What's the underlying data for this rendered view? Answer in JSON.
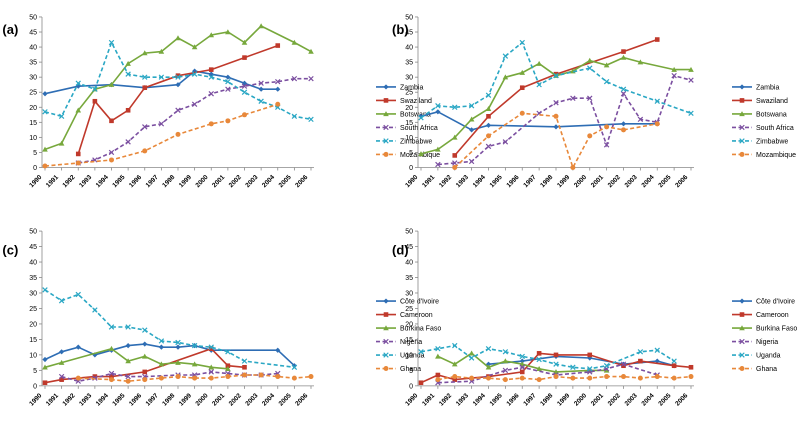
{
  "chart_data": [
    {
      "panel_label": "(a)",
      "type": "line",
      "x": [
        "1990",
        "1991",
        "1992",
        "1993",
        "1994",
        "1995",
        "1996",
        "1997",
        "1998",
        "1999",
        "2000",
        "2001",
        "2002",
        "2003",
        "2004",
        "2005",
        "2006"
      ],
      "ylim": [
        0,
        50
      ],
      "yticks": [
        0,
        5,
        10,
        15,
        20,
        25,
        30,
        35,
        40,
        45,
        50
      ],
      "grid": false,
      "legend": "right",
      "series": [
        {
          "name": "Zambia",
          "color": "#2e6db4",
          "marker": "diamond",
          "dash": "solid",
          "values": [
            24.5,
            null,
            27,
            null,
            27.5,
            null,
            26.5,
            null,
            27.5,
            32,
            31,
            30,
            28,
            26,
            26,
            null,
            null
          ]
        },
        {
          "name": "Swaziland",
          "color": "#c0392b",
          "marker": "square",
          "dash": "solid",
          "values": [
            null,
            null,
            4.5,
            22,
            15.5,
            19,
            26.5,
            null,
            30.5,
            null,
            32.5,
            null,
            36.5,
            null,
            40.5,
            null,
            null
          ]
        },
        {
          "name": "Botswana",
          "color": "#77a83c",
          "marker": "triangle",
          "dash": "solid",
          "values": [
            6,
            8,
            19,
            26,
            27.5,
            34.5,
            38,
            38.5,
            43,
            40,
            44,
            45,
            41.5,
            47,
            null,
            41.5,
            38.5
          ]
        },
        {
          "name": "South Africa",
          "color": "#7b4fa0",
          "marker": "x",
          "dash": "dash",
          "values": [
            null,
            null,
            1.5,
            2.5,
            5,
            8.5,
            13.5,
            14.5,
            19,
            21,
            24.5,
            26,
            27,
            28,
            28.5,
            29.5,
            29.5
          ]
        },
        {
          "name": "Zimbabwe",
          "color": "#2aa7c4",
          "marker": "x",
          "dash": "dash",
          "values": [
            18.5,
            17,
            28,
            26,
            41.5,
            31,
            30,
            30,
            30,
            31,
            30,
            28.5,
            25,
            22,
            20,
            17,
            16
          ]
        },
        {
          "name": "Mozambique",
          "color": "#e8883a",
          "marker": "circle",
          "dash": "dash",
          "values": [
            0.5,
            null,
            1.5,
            null,
            2.5,
            null,
            5.5,
            null,
            11,
            null,
            14.5,
            15.5,
            17.5,
            null,
            21,
            null,
            null
          ]
        }
      ]
    },
    {
      "panel_label": "(b)",
      "type": "line",
      "x": [
        "1990",
        "1991",
        "1992",
        "1993",
        "1994",
        "1995",
        "1996",
        "1997",
        "1998",
        "1999",
        "2000",
        "2001",
        "2002",
        "2003",
        "2004",
        "2005",
        "2006"
      ],
      "ylim": [
        0,
        50
      ],
      "yticks": [
        0,
        5,
        10,
        15,
        20,
        25,
        30,
        35,
        40,
        45,
        50
      ],
      "grid": false,
      "legend": "right",
      "series": [
        {
          "name": "Zambia",
          "color": "#2e6db4",
          "marker": "diamond",
          "dash": "solid",
          "values": [
            17,
            18.5,
            null,
            12.5,
            14,
            null,
            null,
            null,
            13.5,
            null,
            null,
            null,
            14.5,
            null,
            14.5,
            null,
            null
          ]
        },
        {
          "name": "Swaziland",
          "color": "#c0392b",
          "marker": "square",
          "dash": "solid",
          "values": [
            null,
            null,
            4,
            null,
            17,
            null,
            26.5,
            null,
            31,
            null,
            null,
            null,
            38.5,
            null,
            42.5,
            null,
            null
          ]
        },
        {
          "name": "Botswana",
          "color": "#77a83c",
          "marker": "triangle",
          "dash": "solid",
          "values": [
            4.5,
            6,
            10,
            16,
            19.5,
            30,
            31.5,
            34.5,
            30.5,
            32,
            35.5,
            34,
            36.5,
            35,
            null,
            32.5,
            32.5
          ]
        },
        {
          "name": "South Africa",
          "color": "#7b4fa0",
          "marker": "x",
          "dash": "dash",
          "values": [
            null,
            1,
            1.5,
            2,
            7,
            8.5,
            null,
            18,
            21.5,
            23,
            23,
            7.5,
            24.5,
            16,
            15,
            30.5,
            29
          ]
        },
        {
          "name": "Zimbabwe",
          "color": "#2aa7c4",
          "marker": "x",
          "dash": "dash",
          "values": [
            16.5,
            20.5,
            20,
            20.5,
            24,
            37,
            41.5,
            27.5,
            30.5,
            null,
            33,
            28.5,
            26,
            null,
            22,
            null,
            18
          ]
        },
        {
          "name": "Mozambique",
          "color": "#e8883a",
          "marker": "circle",
          "dash": "dash",
          "values": [
            null,
            null,
            0,
            null,
            10.5,
            null,
            18,
            null,
            17,
            0,
            10.5,
            13.5,
            12.5,
            null,
            14.5,
            null,
            null
          ]
        }
      ]
    },
    {
      "panel_label": "(c)",
      "type": "line",
      "x": [
        "1990",
        "1991",
        "1992",
        "1993",
        "1994",
        "1995",
        "1996",
        "1997",
        "1998",
        "1999",
        "2000",
        "2001",
        "2002",
        "2003",
        "2004",
        "2005",
        "2006"
      ],
      "ylim": [
        0,
        50
      ],
      "yticks": [
        0,
        5,
        10,
        15,
        20,
        25,
        30,
        35,
        40,
        45,
        50
      ],
      "grid": false,
      "legend": "right",
      "series": [
        {
          "name": "Côte d'Ivoire",
          "color": "#2e6db4",
          "marker": "diamond",
          "dash": "solid",
          "values": [
            8.5,
            11,
            12.5,
            10,
            11.5,
            13,
            13.5,
            12.5,
            12.5,
            13,
            11.5,
            null,
            null,
            null,
            11.5,
            6.5,
            null
          ]
        },
        {
          "name": "Cameroon",
          "color": "#c0392b",
          "marker": "square",
          "dash": "solid",
          "values": [
            1,
            2,
            null,
            3,
            3,
            null,
            4.5,
            null,
            null,
            null,
            12,
            6.5,
            6,
            null,
            null,
            null,
            null
          ]
        },
        {
          "name": "Burkina Faso",
          "color": "#77a83c",
          "marker": "triangle",
          "dash": "solid",
          "values": [
            6,
            7.5,
            null,
            null,
            12,
            8,
            9.5,
            7,
            7.5,
            7,
            6,
            5.5,
            null,
            null,
            null,
            null,
            null
          ]
        },
        {
          "name": "Nigeria",
          "color": "#7b4fa0",
          "marker": "x",
          "dash": "dash",
          "values": [
            null,
            3,
            1.5,
            2.5,
            4,
            3,
            3,
            null,
            3.5,
            3.5,
            4.5,
            4,
            3.5,
            3.5,
            4,
            null,
            null
          ]
        },
        {
          "name": "Uganda",
          "color": "#2aa7c4",
          "marker": "x",
          "dash": "dash",
          "values": [
            31,
            27.5,
            29.5,
            24.5,
            19,
            19,
            18,
            14.5,
            14,
            13,
            12.5,
            11,
            8,
            null,
            null,
            6,
            null
          ]
        },
        {
          "name": "Ghana",
          "color": "#e8883a",
          "marker": "circle",
          "dash": "dash",
          "values": [
            null,
            null,
            2.5,
            null,
            2,
            1.5,
            2,
            2.5,
            3,
            2.5,
            2.5,
            3,
            3.5,
            3.5,
            3,
            2.5,
            3
          ]
        }
      ]
    },
    {
      "panel_label": "(d)",
      "type": "line",
      "x": [
        "1990",
        "1991",
        "1992",
        "1993",
        "1994",
        "1995",
        "1996",
        "1997",
        "1998",
        "1999",
        "2000",
        "2001",
        "2002",
        "2003",
        "2004",
        "2005",
        "2006"
      ],
      "ylim": [
        0,
        50
      ],
      "yticks": [
        0,
        5,
        10,
        15,
        20,
        25,
        30,
        35,
        40,
        45,
        50
      ],
      "grid": false,
      "legend": "right",
      "series": [
        {
          "name": "Côte d'Ivoire",
          "color": "#2e6db4",
          "marker": "diamond",
          "dash": "solid",
          "values": [
            null,
            null,
            null,
            null,
            7,
            null,
            8,
            null,
            9.5,
            null,
            9,
            null,
            7,
            null,
            8,
            6.5,
            null
          ]
        },
        {
          "name": "Cameroon",
          "color": "#c0392b",
          "marker": "square",
          "dash": "solid",
          "values": [
            1,
            3.5,
            2,
            null,
            3,
            null,
            4.5,
            10.5,
            10,
            null,
            10,
            null,
            6.5,
            8,
            null,
            6.5,
            6
          ]
        },
        {
          "name": "Burkina Faso",
          "color": "#77a83c",
          "marker": "triangle",
          "dash": "solid",
          "values": [
            null,
            9.5,
            7,
            10.5,
            6,
            8,
            7,
            5.5,
            4.5,
            null,
            5,
            5,
            null,
            null,
            null,
            null,
            null
          ]
        },
        {
          "name": "Nigeria",
          "color": "#7b4fa0",
          "marker": "x",
          "dash": "dash",
          "values": [
            null,
            1,
            null,
            1.5,
            null,
            5,
            6,
            null,
            3.5,
            null,
            4.5,
            5.5,
            7,
            null,
            3.5,
            null,
            null
          ]
        },
        {
          "name": "Uganda",
          "color": "#2aa7c4",
          "marker": "x",
          "dash": "dash",
          "values": [
            11,
            12,
            13,
            9,
            12,
            11,
            9.5,
            8.5,
            7,
            6,
            5.5,
            6.5,
            null,
            11,
            11.5,
            8,
            null
          ]
        },
        {
          "name": "Ghana",
          "color": "#e8883a",
          "marker": "circle",
          "dash": "dash",
          "values": [
            null,
            2,
            3,
            2.5,
            2.5,
            2,
            2.5,
            2,
            3,
            2.5,
            2.5,
            3,
            3,
            2.5,
            3,
            2.5,
            3
          ]
        }
      ]
    }
  ]
}
